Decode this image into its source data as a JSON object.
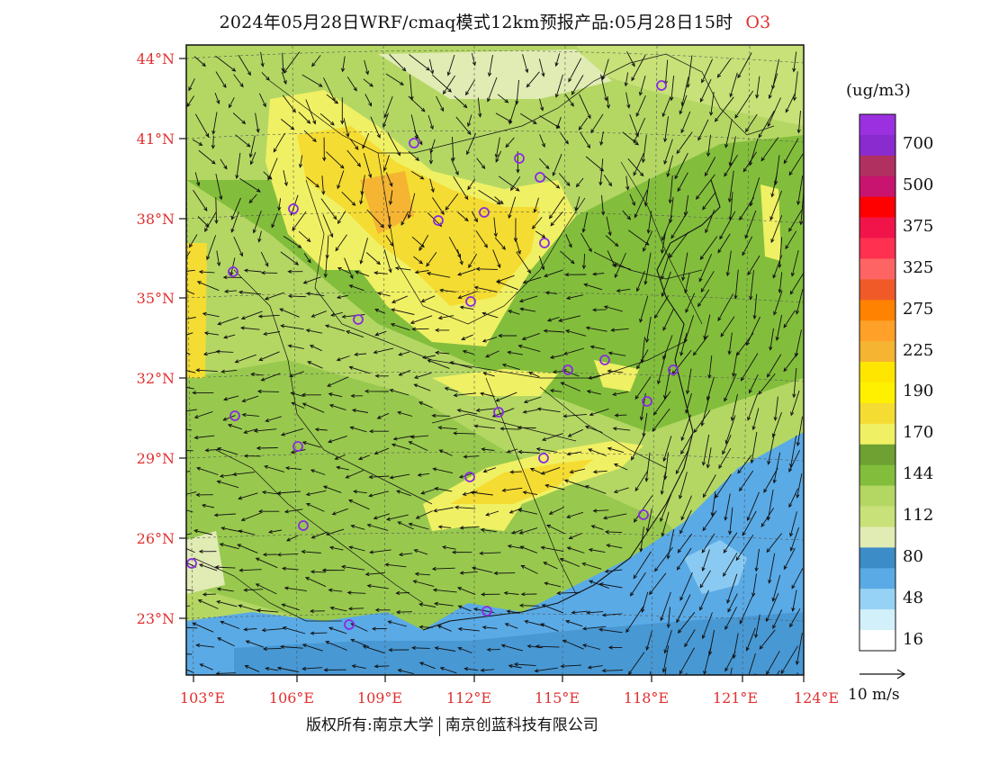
{
  "header": {
    "title": "2024年05月28日WRF/cmaq模式12km预报产品:05月28日15时",
    "species": "O3"
  },
  "map": {
    "lat_labels": [
      "44°N",
      "41°N",
      "38°N",
      "35°N",
      "32°N",
      "29°N",
      "26°N",
      "23°N"
    ],
    "lon_labels": [
      "103°E",
      "106°E",
      "109°E",
      "112°E",
      "115°E",
      "118°E",
      "121°E",
      "124°E"
    ],
    "lat_range": [
      21,
      44.5
    ],
    "lon_range": [
      103,
      124
    ]
  },
  "legend": {
    "unit": "(ug/m3)",
    "levels": [
      {
        "label": "",
        "color": "#9b30e0"
      },
      {
        "label": "700",
        "color": "#8a2bd0"
      },
      {
        "label": "",
        "color": "#b03060"
      },
      {
        "label": "500",
        "color": "#c8146e"
      },
      {
        "label": "",
        "color": "#ff0000"
      },
      {
        "label": "375",
        "color": "#f0144a"
      },
      {
        "label": "",
        "color": "#ff3050"
      },
      {
        "label": "325",
        "color": "#ff6464"
      },
      {
        "label": "",
        "color": "#f05a28"
      },
      {
        "label": "275",
        "color": "#ff8200"
      },
      {
        "label": "",
        "color": "#ffa028"
      },
      {
        "label": "225",
        "color": "#f5b432"
      },
      {
        "label": "",
        "color": "#ffe600"
      },
      {
        "label": "190",
        "color": "#fff000"
      },
      {
        "label": "",
        "color": "#f5dc32"
      },
      {
        "label": "170",
        "color": "#f0f064"
      },
      {
        "label": "",
        "color": "#6ea032"
      },
      {
        "label": "144",
        "color": "#82be3c"
      },
      {
        "label": "",
        "color": "#b4d764"
      },
      {
        "label": "112",
        "color": "#c8e178"
      },
      {
        "label": "",
        "color": "#e1ebb4"
      },
      {
        "label": "80",
        "color": "#3c8cc8"
      },
      {
        "label": "",
        "color": "#5aaae6"
      },
      {
        "label": "48",
        "color": "#96d2f5"
      },
      {
        "label": "",
        "color": "#d2f0fa"
      },
      {
        "label": "16",
        "color": "#ffffff"
      }
    ]
  },
  "wind_reference": "10 m/s",
  "footer": {
    "copyright_owner": "版权所有:南京大学",
    "partner": "南京创蓝科技有限公司"
  }
}
